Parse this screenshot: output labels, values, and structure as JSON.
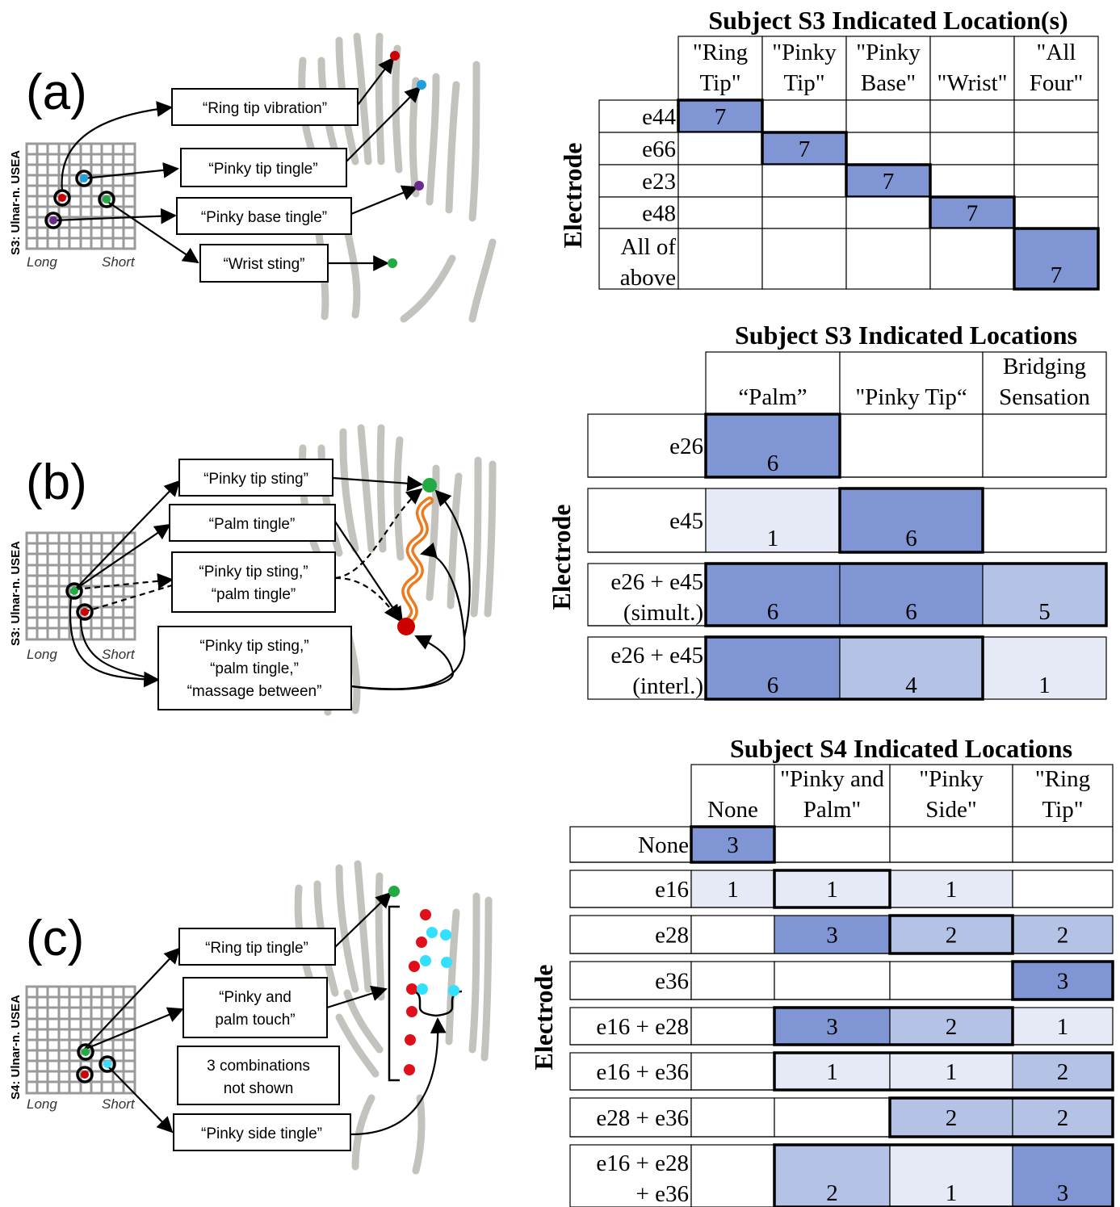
{
  "panels": [
    {
      "letter": "(a)",
      "array_label": "S3: Ulnar-n. USEA",
      "long_label": "Long",
      "short_label": "Short",
      "callouts": [
        {
          "lines": [
            "“Ring tip vibration”"
          ]
        },
        {
          "lines": [
            "“Pinky tip tingle”"
          ]
        },
        {
          "lines": [
            "“Pinky base tingle”"
          ]
        },
        {
          "lines": [
            "“Wrist sting”"
          ]
        }
      ]
    },
    {
      "letter": "(b)",
      "array_label": "S3: Ulnar-n. USEA",
      "long_label": "Long",
      "short_label": "Short",
      "callouts": [
        {
          "lines": [
            "“Pinky tip sting”"
          ]
        },
        {
          "lines": [
            "“Palm tingle”"
          ]
        },
        {
          "lines": [
            "“Pinky tip sting,”",
            "“palm tingle”"
          ]
        },
        {
          "lines": [
            "“Pinky tip sting,”",
            "“palm tingle,”",
            "“massage between”"
          ]
        }
      ]
    },
    {
      "letter": "(c)",
      "array_label": "S4: Ulnar-n. USEA",
      "long_label": "Long",
      "short_label": "Short",
      "callouts": [
        {
          "lines": [
            "“Ring tip tingle”"
          ]
        },
        {
          "lines": [
            "“Pinky and",
            "palm touch”"
          ]
        },
        {
          "lines": [
            "3 combinations",
            "not shown"
          ]
        },
        {
          "lines": [
            "“Pinky side tingle”"
          ]
        }
      ]
    }
  ],
  "tables": [
    {
      "title": "Subject S3 Indicated Location(s)",
      "row_axis_label": "Electrode",
      "columns": [
        [
          "\"Ring",
          "Tip\""
        ],
        [
          "\"Pinky",
          "Tip\""
        ],
        [
          "\"Pinky",
          "Base\""
        ],
        [
          "\"Wrist\""
        ],
        [
          "\"All",
          "Four\""
        ]
      ],
      "rows": [
        {
          "label": [
            "e44"
          ],
          "values": [
            7,
            null,
            null,
            null,
            null
          ],
          "highlight": 0
        },
        {
          "label": [
            "e66"
          ],
          "values": [
            null,
            7,
            null,
            null,
            null
          ],
          "highlight": 1
        },
        {
          "label": [
            "e23"
          ],
          "values": [
            null,
            null,
            7,
            null,
            null
          ],
          "highlight": 2
        },
        {
          "label": [
            "e48"
          ],
          "values": [
            null,
            null,
            null,
            7,
            null
          ],
          "highlight": 3
        },
        {
          "label": [
            "All of",
            "above"
          ],
          "values": [
            null,
            null,
            null,
            null,
            7
          ],
          "highlight": 4
        }
      ]
    },
    {
      "title": "Subject S3 Indicated Locations",
      "row_axis_label": "Electrode",
      "columns": [
        [
          "“Palm”"
        ],
        [
          "\"Pinky Tip“"
        ],
        [
          "Bridging",
          "Sensation"
        ]
      ],
      "rows": [
        {
          "label": [
            "e26"
          ],
          "values": [
            6,
            null,
            null
          ],
          "highlight": [
            0
          ]
        },
        {
          "label": [
            "e45"
          ],
          "values": [
            1,
            6,
            null
          ],
          "highlight": [
            1
          ]
        },
        {
          "label": [
            "e26 + e45",
            "(simult.)"
          ],
          "values": [
            6,
            6,
            5
          ],
          "highlight": [
            0,
            1,
            2
          ]
        },
        {
          "label": [
            "e26 + e45",
            "(interl.)"
          ],
          "values": [
            6,
            4,
            1
          ],
          "highlight": [
            0,
            1
          ]
        }
      ]
    },
    {
      "title": "Subject S4 Indicated Locations",
      "row_axis_label": "Electrode",
      "columns": [
        [
          "None"
        ],
        [
          "\"Pinky and",
          "Palm\""
        ],
        [
          "\"Pinky",
          "Side\""
        ],
        [
          "\"Ring",
          "Tip\""
        ]
      ],
      "rows": [
        {
          "label": [
            "None"
          ],
          "values": [
            3,
            null,
            null,
            null
          ],
          "highlight": [
            0
          ]
        },
        {
          "label": [
            "e16"
          ],
          "values": [
            1,
            1,
            1,
            null
          ],
          "highlight": [
            1
          ]
        },
        {
          "label": [
            "e28"
          ],
          "values": [
            null,
            3,
            2,
            2
          ],
          "highlight": [
            2
          ]
        },
        {
          "label": [
            "e36"
          ],
          "values": [
            null,
            null,
            null,
            3
          ],
          "highlight": [
            3
          ]
        },
        {
          "label": [
            "e16 + e28"
          ],
          "values": [
            null,
            3,
            2,
            1
          ],
          "highlight": [
            1,
            2
          ]
        },
        {
          "label": [
            "e16 + e36"
          ],
          "values": [
            null,
            1,
            1,
            2
          ],
          "highlight": [
            1,
            3
          ]
        },
        {
          "label": [
            "e28 + e36"
          ],
          "values": [
            null,
            null,
            2,
            2
          ],
          "highlight": [
            2,
            3
          ]
        },
        {
          "label": [
            "e16 + e28",
            "+ e36"
          ],
          "values": [
            null,
            2,
            1,
            3
          ],
          "highlight": [
            1,
            2,
            3
          ]
        }
      ]
    }
  ],
  "colors": {
    "max": "#8096d4",
    "mid": "#b4c2e6",
    "light": "#e6eaf6",
    "gray_hand": "#bdbcb6",
    "red": "#cc0000",
    "green": "#22aa44",
    "blue": "#1ea0dc",
    "purple": "#6a2c8c",
    "cyan": "#33e0ff",
    "orange": "#ee7a1e"
  }
}
